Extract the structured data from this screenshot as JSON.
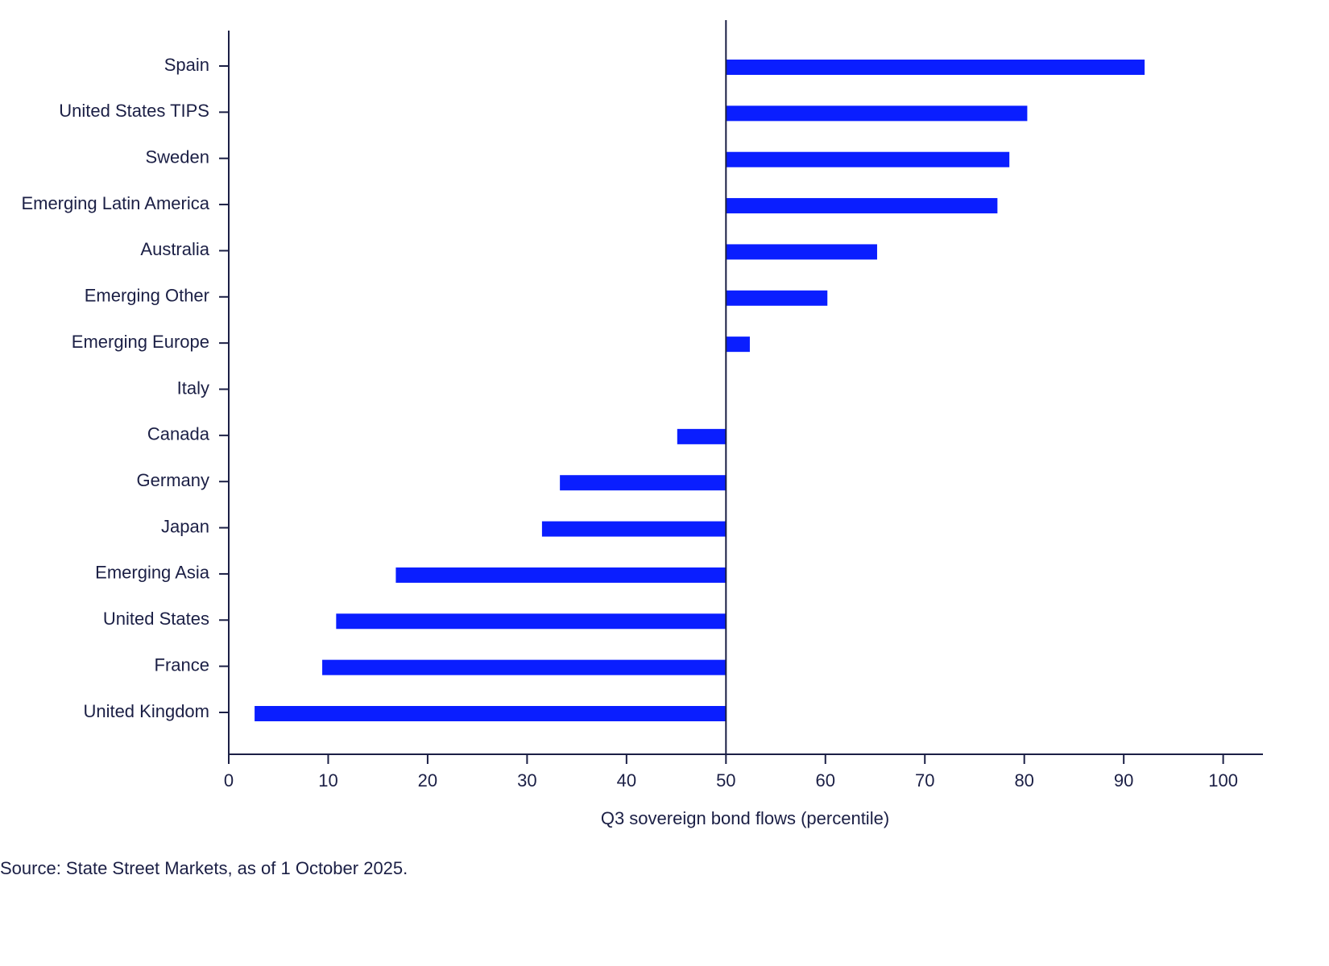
{
  "chart_data": {
    "type": "bar",
    "orientation": "horizontal",
    "categories": [
      "Spain",
      "United States TIPS",
      "Sweden",
      "Emerging Latin America",
      "Australia",
      "Emerging Other",
      "Emerging Europe",
      "Italy",
      "Canada",
      "Germany",
      "Japan",
      "Emerging Asia",
      "United States",
      "France",
      "United Kingdom"
    ],
    "values": [
      92.1,
      80.3,
      78.5,
      77.3,
      65.2,
      60.2,
      52.4,
      50,
      45.1,
      33.3,
      31.5,
      16.8,
      10.8,
      9.4,
      2.6
    ],
    "baseline": 50,
    "color": "#0a1eff",
    "xlim": [
      0,
      104
    ],
    "xticks": [
      0,
      10,
      20,
      30,
      40,
      50,
      60,
      70,
      80,
      90,
      100
    ],
    "x_label": "Q3 sovereign bond flows (percentile)",
    "source": "Source: State Street Markets, as of 1 October 2025."
  }
}
